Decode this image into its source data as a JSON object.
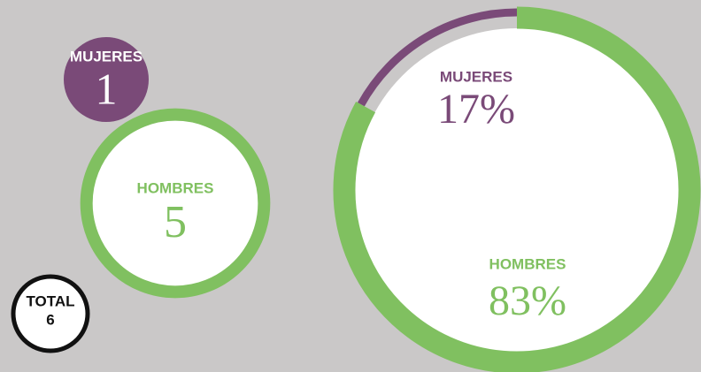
{
  "counts": {
    "items": [
      {
        "label": "MUJERES",
        "value": 1
      },
      {
        "label": "HOMBRES",
        "value": 5
      }
    ],
    "total": {
      "label": "TOTAL",
      "value": 6
    }
  },
  "chart_data": {
    "type": "donut",
    "categories": [
      "MUJERES",
      "HOMBRES"
    ],
    "values": [
      17,
      83
    ],
    "value_labels": [
      "17%",
      "83%"
    ],
    "colors": [
      "#7a4a78",
      "#80c060"
    ]
  }
}
